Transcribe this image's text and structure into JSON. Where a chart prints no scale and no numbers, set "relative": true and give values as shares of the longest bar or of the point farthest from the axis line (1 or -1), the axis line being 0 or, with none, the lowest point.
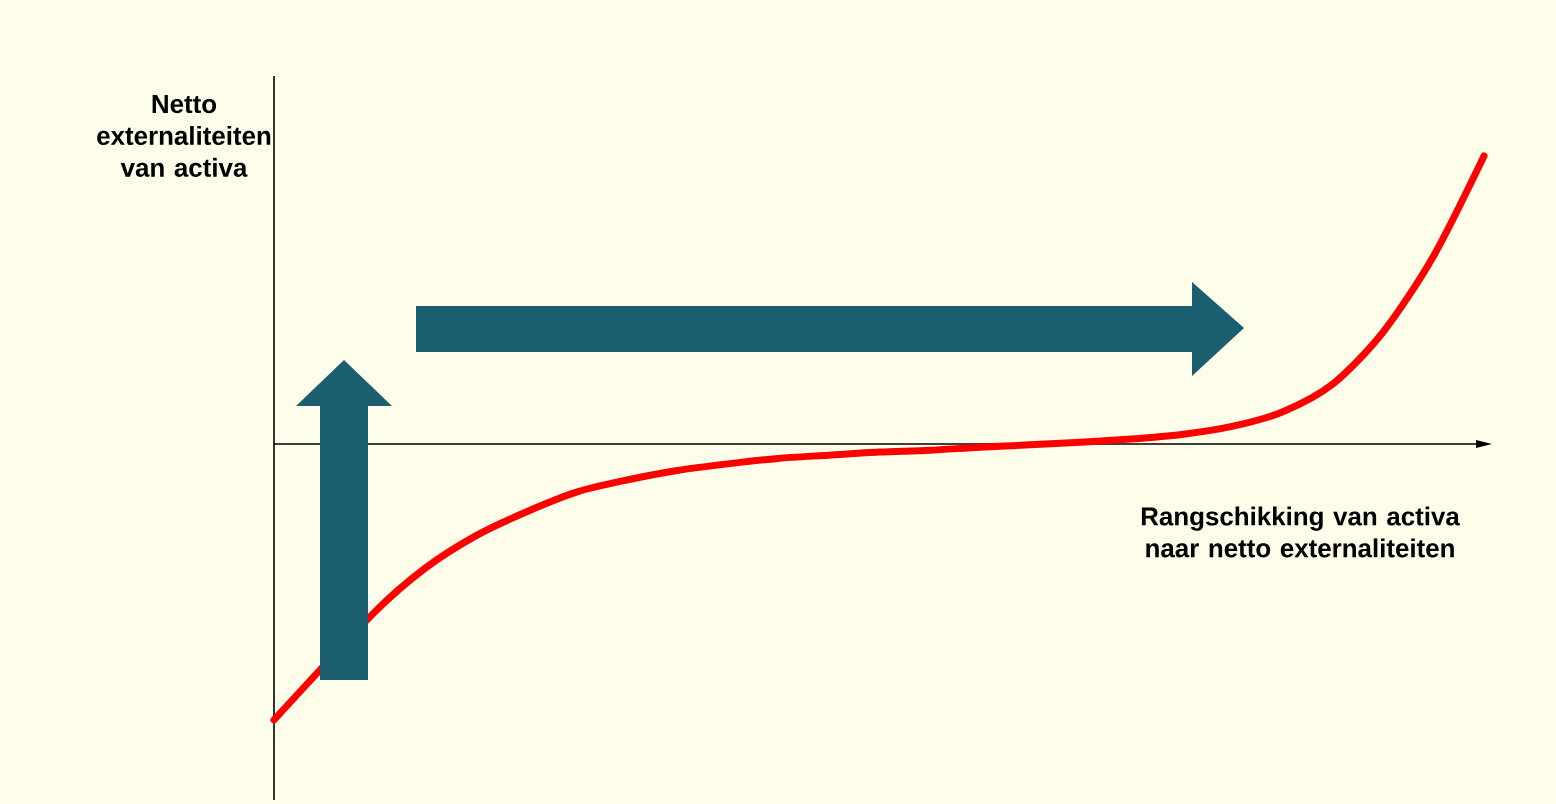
{
  "chart_data": {
    "type": "line",
    "relative": true,
    "xlabel": "Rangschikking van activa naar netto externaliteiten",
    "ylabel": "Netto externaliteiten van activa",
    "categories": [
      null,
      null,
      null,
      null,
      null,
      null,
      null,
      null,
      null,
      null,
      null,
      null,
      null,
      null,
      null,
      null,
      null,
      null,
      null,
      null,
      null,
      null,
      null,
      null,
      null
    ],
    "series": [
      {
        "color": "#ff0000",
        "values": [
          -0.958,
          null,
          -0.583,
          -0.431,
          -0.319,
          -0.236,
          -0.167,
          -0.125,
          -0.092,
          -0.069,
          -0.05,
          -0.039,
          -0.028,
          -0.022,
          -0.011,
          -0.003,
          0.006,
          0.017,
          0.033,
          0.061,
          0.111,
          0.208,
          0.389,
          0.653,
          1
        ]
      }
    ]
  }
}
